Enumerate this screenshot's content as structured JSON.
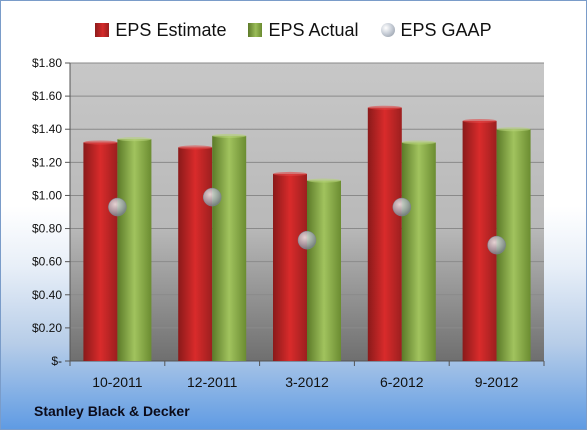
{
  "chart_data": {
    "type": "bar",
    "categories": [
      "10-2011",
      "12-2011",
      "3-2012",
      "6-2012",
      "9-2012"
    ],
    "series": [
      {
        "name": "EPS Estimate",
        "kind": "bar",
        "color": "#c62828",
        "values": [
          1.32,
          1.29,
          1.13,
          1.53,
          1.45
        ]
      },
      {
        "name": "EPS Actual",
        "kind": "bar",
        "color": "#8db04a",
        "values": [
          1.34,
          1.36,
          1.09,
          1.32,
          1.4
        ]
      },
      {
        "name": "EPS GAAP",
        "kind": "marker",
        "color": "#a9b2bd",
        "values": [
          0.93,
          0.99,
          0.73,
          0.93,
          0.7
        ]
      }
    ],
    "yticks": [
      "$-",
      "$0.20",
      "$0.40",
      "$0.60",
      "$0.80",
      "$1.00",
      "$1.20",
      "$1.40",
      "$1.60",
      "$1.80"
    ],
    "ylim": [
      0,
      1.8
    ],
    "grid": true,
    "legend_position": "top"
  },
  "footer": {
    "company": "Stanley Black & Decker"
  }
}
